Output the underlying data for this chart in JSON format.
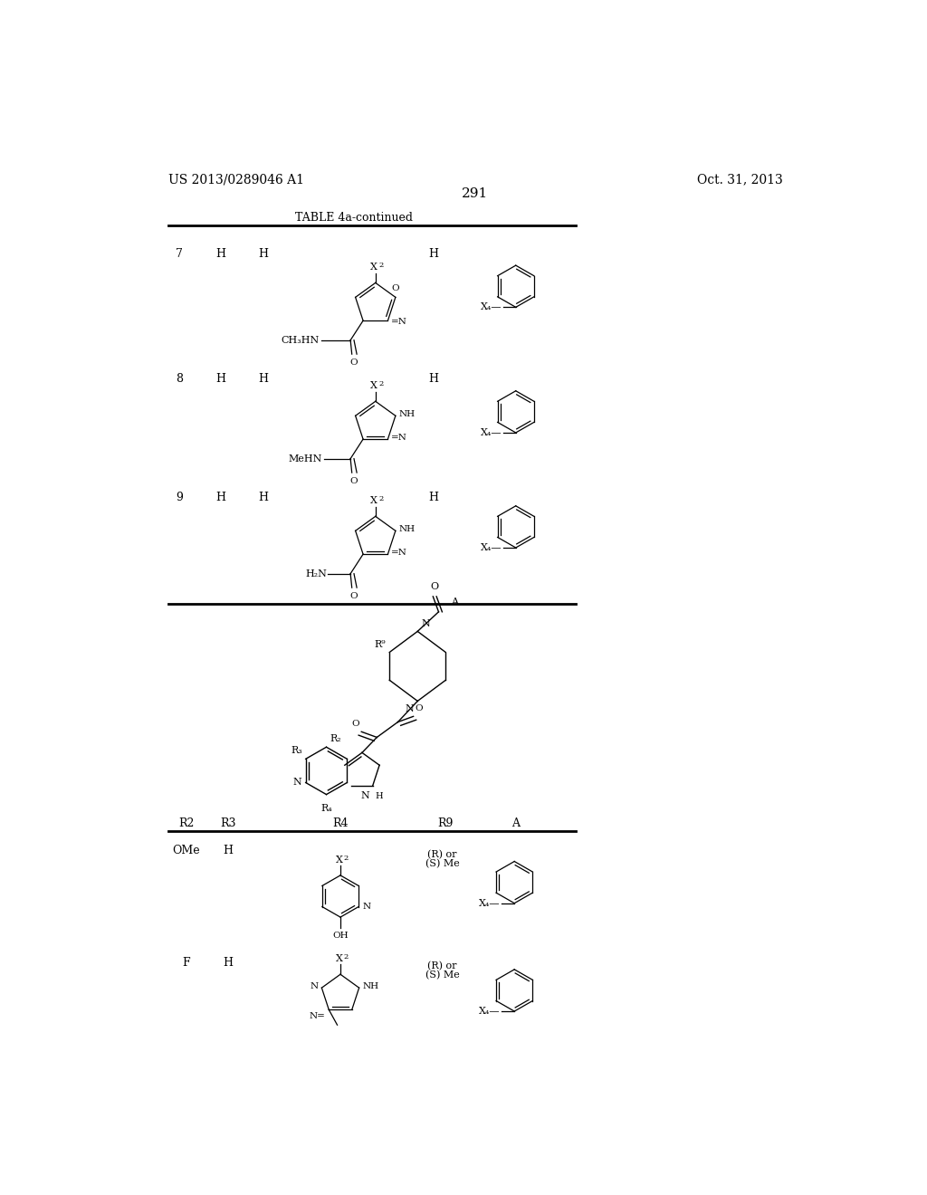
{
  "patent_number": "US 2013/0289046 A1",
  "date": "Oct. 31, 2013",
  "page_number": "291",
  "table_title": "TABLE 4a-continued",
  "background_color": "#ffffff",
  "text_color": "#000000"
}
